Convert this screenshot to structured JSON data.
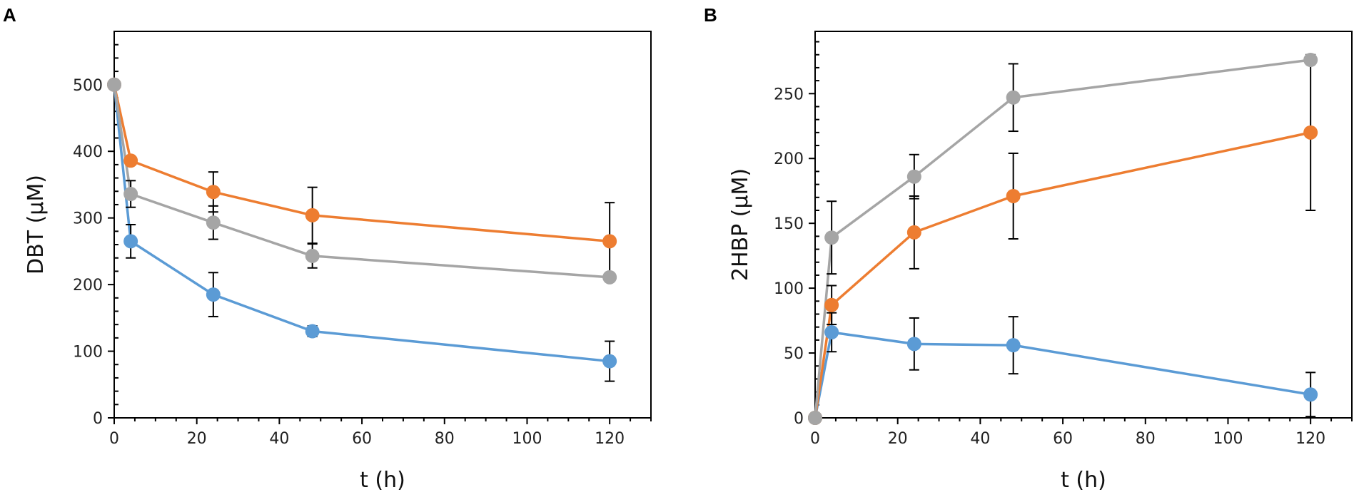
{
  "chart_data": [
    {
      "panel": "A",
      "type": "line",
      "title": "",
      "xlabel": "t (h)",
      "ylabel": "DBT (µM)",
      "xlim": [
        0,
        130
      ],
      "ylim": [
        0,
        580
      ],
      "xticks": [
        0,
        20,
        40,
        60,
        80,
        100,
        120
      ],
      "xtick_labels": [
        "0",
        "20",
        "40",
        "60",
        "80",
        "100",
        "120"
      ],
      "yticks": [
        0,
        100,
        200,
        300,
        400,
        500
      ],
      "ytick_labels": [
        "0",
        "100",
        "200",
        "300",
        "400",
        "500"
      ],
      "x": [
        0,
        4,
        24,
        48,
        120
      ],
      "series": [
        {
          "name": "blue",
          "color": "#5b9bd5",
          "values": [
            500,
            265,
            185,
            130,
            85
          ],
          "errors": [
            0,
            25,
            33,
            8,
            30
          ]
        },
        {
          "name": "orange",
          "color": "#ed7d31",
          "values": [
            500,
            386,
            339,
            304,
            265
          ],
          "errors": [
            0,
            0,
            30,
            42,
            58
          ]
        },
        {
          "name": "gray",
          "color": "#a5a5a5",
          "values": [
            500,
            336,
            293,
            243,
            211
          ],
          "errors": [
            0,
            20,
            25,
            18,
            0
          ]
        }
      ]
    },
    {
      "panel": "B",
      "type": "line",
      "title": "",
      "xlabel": "t (h)",
      "ylabel": "2HBP (µM)",
      "xlim": [
        0,
        130
      ],
      "ylim": [
        0,
        298
      ],
      "xticks": [
        0,
        20,
        40,
        60,
        80,
        100,
        120
      ],
      "xtick_labels": [
        "0",
        "20",
        "40",
        "60",
        "80",
        "100",
        "120"
      ],
      "yticks": [
        0,
        50,
        100,
        150,
        200,
        250
      ],
      "ytick_labels": [
        "0",
        "50",
        "100",
        "150",
        "200",
        "250"
      ],
      "x": [
        0,
        4,
        24,
        48,
        120
      ],
      "series": [
        {
          "name": "blue",
          "color": "#5b9bd5",
          "values": [
            0,
            66,
            57,
            56,
            18
          ],
          "errors": [
            0,
            15,
            20,
            22,
            17
          ]
        },
        {
          "name": "orange",
          "color": "#ed7d31",
          "values": [
            0,
            87,
            143,
            171,
            220
          ],
          "errors": [
            0,
            15,
            28,
            33,
            60
          ]
        },
        {
          "name": "gray",
          "color": "#a5a5a5",
          "values": [
            0,
            139,
            186,
            247,
            276
          ],
          "errors": [
            0,
            28,
            17,
            26,
            0
          ]
        }
      ]
    }
  ]
}
